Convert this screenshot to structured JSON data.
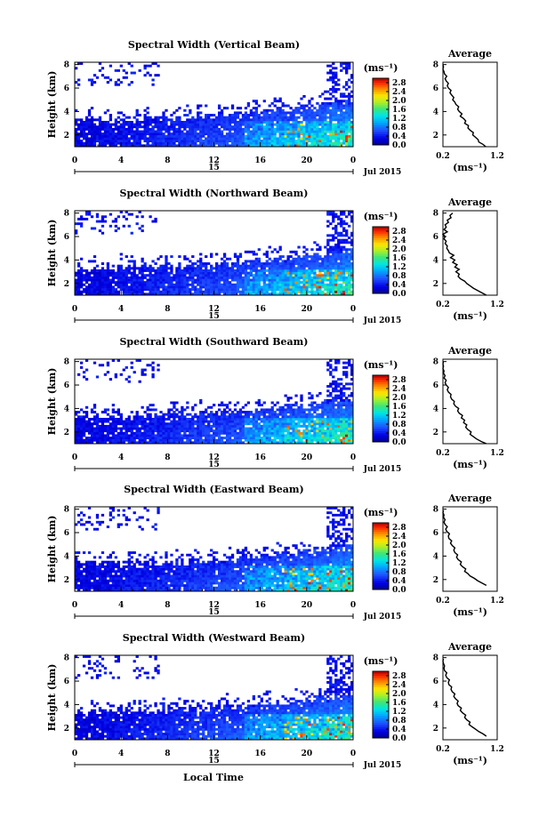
{
  "chart_data": [
    {
      "type": "heatmap",
      "title": "Spectral Width (Vertical Beam)",
      "ylabel": "Height (km)",
      "x_ticks": [
        "0",
        "4",
        "8",
        "12",
        "16",
        "20",
        "0"
      ],
      "y_ticks": [
        "2",
        "4",
        "6",
        "8"
      ],
      "date_day": "15",
      "date_month": "Jul 2015",
      "colorbar": {
        "unit": "(ms⁻¹)",
        "ticks": [
          "0.0",
          "0.4",
          "0.8",
          "1.2",
          "1.6",
          "2.0",
          "2.4",
          "2.8"
        ],
        "range": [
          0,
          3.0
        ]
      },
      "average": {
        "title": "Average",
        "xlabel": "(ms⁻¹)",
        "x_ticks": [
          "0.2",
          "1.2"
        ],
        "y_ticks": [
          "2",
          "4",
          "6",
          "8"
        ],
        "profile": [
          [
            0.99,
            1.0
          ],
          [
            0.94,
            1.2
          ],
          [
            0.86,
            1.4
          ],
          [
            0.85,
            1.6
          ],
          [
            0.8,
            1.8
          ],
          [
            0.75,
            2.0
          ],
          [
            0.76,
            2.2
          ],
          [
            0.7,
            2.4
          ],
          [
            0.66,
            2.6
          ],
          [
            0.67,
            2.8
          ],
          [
            0.6,
            3.0
          ],
          [
            0.62,
            3.2
          ],
          [
            0.58,
            3.4
          ],
          [
            0.52,
            3.6
          ],
          [
            0.55,
            3.8
          ],
          [
            0.5,
            4.0
          ],
          [
            0.47,
            4.2
          ],
          [
            0.49,
            4.4
          ],
          [
            0.44,
            4.6
          ],
          [
            0.42,
            4.8
          ],
          [
            0.38,
            5.0
          ],
          [
            0.4,
            5.2
          ],
          [
            0.36,
            5.4
          ],
          [
            0.33,
            5.6
          ],
          [
            0.35,
            5.8
          ],
          [
            0.3,
            6.0
          ],
          [
            0.28,
            6.2
          ],
          [
            0.3,
            6.4
          ],
          [
            0.26,
            6.6
          ],
          [
            0.24,
            6.8
          ],
          [
            0.27,
            7.0
          ],
          [
            0.23,
            7.2
          ],
          [
            0.22,
            7.4
          ],
          [
            0.2,
            7.6
          ],
          [
            0.21,
            7.8
          ],
          [
            0.2,
            8.0
          ]
        ]
      }
    },
    {
      "type": "heatmap",
      "title": "Spectral Width (Northward Beam)",
      "ylabel": "Height (km)",
      "x_ticks": [
        "0",
        "4",
        "8",
        "12",
        "16",
        "20",
        "0"
      ],
      "y_ticks": [
        "2",
        "4",
        "6",
        "8"
      ],
      "date_day": "15",
      "date_month": "Jul 2015",
      "colorbar": {
        "unit": "(ms⁻¹)",
        "ticks": [
          "0.0",
          "0.4",
          "0.8",
          "1.2",
          "1.6",
          "2.0",
          "2.4",
          "2.8"
        ],
        "range": [
          0,
          3.0
        ]
      },
      "average": {
        "title": "Average",
        "xlabel": "(ms⁻¹)",
        "x_ticks": [
          "0.2",
          "1.2"
        ],
        "y_ticks": [
          "2",
          "4",
          "6",
          "8"
        ],
        "profile": [
          [
            1.0,
            1.0
          ],
          [
            0.92,
            1.2
          ],
          [
            0.84,
            1.4
          ],
          [
            0.76,
            1.6
          ],
          [
            0.7,
            1.8
          ],
          [
            0.64,
            2.0
          ],
          [
            0.6,
            2.2
          ],
          [
            0.52,
            2.4
          ],
          [
            0.48,
            2.6
          ],
          [
            0.5,
            2.8
          ],
          [
            0.44,
            3.0
          ],
          [
            0.5,
            3.2
          ],
          [
            0.42,
            3.4
          ],
          [
            0.46,
            3.6
          ],
          [
            0.38,
            3.8
          ],
          [
            0.42,
            4.0
          ],
          [
            0.34,
            4.2
          ],
          [
            0.4,
            4.4
          ],
          [
            0.32,
            4.6
          ],
          [
            0.3,
            4.8
          ],
          [
            0.27,
            5.0
          ],
          [
            0.28,
            5.2
          ],
          [
            0.24,
            5.4
          ],
          [
            0.26,
            5.6
          ],
          [
            0.22,
            5.8
          ],
          [
            0.24,
            6.0
          ],
          [
            0.2,
            6.2
          ],
          [
            0.28,
            6.4
          ],
          [
            0.22,
            6.6
          ],
          [
            0.26,
            6.8
          ],
          [
            0.24,
            7.0
          ],
          [
            0.3,
            7.2
          ],
          [
            0.28,
            7.4
          ],
          [
            0.35,
            7.6
          ],
          [
            0.33,
            7.8
          ],
          [
            0.38,
            8.0
          ]
        ]
      }
    },
    {
      "type": "heatmap",
      "title": "Spectral Width (Southward Beam)",
      "ylabel": "Height (km)",
      "x_ticks": [
        "0",
        "4",
        "8",
        "12",
        "16",
        "20",
        "0"
      ],
      "y_ticks": [
        "2",
        "4",
        "6",
        "8"
      ],
      "date_day": "15",
      "date_month": "Jul 2015",
      "colorbar": {
        "unit": "(ms⁻¹)",
        "ticks": [
          "0.0",
          "0.4",
          "0.8",
          "1.2",
          "1.6",
          "2.0",
          "2.4",
          "2.8"
        ],
        "range": [
          0,
          3.0
        ]
      },
      "average": {
        "title": "Average",
        "xlabel": "(ms⁻¹)",
        "x_ticks": [
          "0.2",
          "1.2"
        ],
        "y_ticks": [
          "2",
          "4",
          "6",
          "8"
        ],
        "profile": [
          [
            1.0,
            1.0
          ],
          [
            0.9,
            1.2
          ],
          [
            0.82,
            1.4
          ],
          [
            0.76,
            1.6
          ],
          [
            0.7,
            1.8
          ],
          [
            0.72,
            2.0
          ],
          [
            0.66,
            2.2
          ],
          [
            0.62,
            2.4
          ],
          [
            0.64,
            2.6
          ],
          [
            0.58,
            2.8
          ],
          [
            0.6,
            3.0
          ],
          [
            0.54,
            3.2
          ],
          [
            0.56,
            3.4
          ],
          [
            0.5,
            3.6
          ],
          [
            0.47,
            3.8
          ],
          [
            0.49,
            4.0
          ],
          [
            0.43,
            4.2
          ],
          [
            0.4,
            4.4
          ],
          [
            0.41,
            4.6
          ],
          [
            0.36,
            4.8
          ],
          [
            0.34,
            5.0
          ],
          [
            0.35,
            5.2
          ],
          [
            0.3,
            5.4
          ],
          [
            0.28,
            5.6
          ],
          [
            0.3,
            5.8
          ],
          [
            0.26,
            6.0
          ],
          [
            0.24,
            6.2
          ],
          [
            0.26,
            6.4
          ],
          [
            0.22,
            6.6
          ],
          [
            0.24,
            6.8
          ],
          [
            0.21,
            7.0
          ],
          [
            0.22,
            7.2
          ],
          [
            0.2,
            7.4
          ],
          [
            0.21,
            7.6
          ],
          [
            0.2,
            7.8
          ],
          [
            0.21,
            8.0
          ]
        ]
      }
    },
    {
      "type": "heatmap",
      "title": "Spectral Width (Eastward Beam)",
      "ylabel": "Height (km)",
      "x_ticks": [
        "0",
        "4",
        "8",
        "12",
        "16",
        "20",
        "0"
      ],
      "y_ticks": [
        "2",
        "4",
        "6",
        "8"
      ],
      "date_day": "15",
      "date_month": "Jul 2015",
      "colorbar": {
        "unit": "(ms⁻¹)",
        "ticks": [
          "0.0",
          "0.4",
          "0.8",
          "1.2",
          "1.6",
          "2.0",
          "2.4",
          "2.8"
        ],
        "range": [
          0,
          3.0
        ]
      },
      "average": {
        "title": "Average",
        "xlabel": "(ms⁻¹)",
        "x_ticks": [
          "0.2",
          "1.2"
        ],
        "y_ticks": [
          "2",
          "4",
          "6",
          "8"
        ],
        "profile": [
          [
            1.0,
            1.5
          ],
          [
            0.92,
            1.7
          ],
          [
            0.84,
            1.9
          ],
          [
            0.78,
            2.1
          ],
          [
            0.7,
            2.3
          ],
          [
            0.66,
            2.5
          ],
          [
            0.6,
            2.7
          ],
          [
            0.62,
            2.9
          ],
          [
            0.56,
            3.1
          ],
          [
            0.52,
            3.3
          ],
          [
            0.54,
            3.5
          ],
          [
            0.48,
            3.7
          ],
          [
            0.45,
            3.9
          ],
          [
            0.47,
            4.1
          ],
          [
            0.42,
            4.3
          ],
          [
            0.4,
            4.5
          ],
          [
            0.42,
            4.7
          ],
          [
            0.37,
            4.9
          ],
          [
            0.34,
            5.1
          ],
          [
            0.36,
            5.3
          ],
          [
            0.31,
            5.5
          ],
          [
            0.3,
            5.7
          ],
          [
            0.32,
            5.9
          ],
          [
            0.27,
            6.1
          ],
          [
            0.25,
            6.3
          ],
          [
            0.28,
            6.5
          ],
          [
            0.24,
            6.7
          ],
          [
            0.22,
            6.9
          ],
          [
            0.24,
            7.1
          ],
          [
            0.21,
            7.3
          ],
          [
            0.22,
            7.5
          ],
          [
            0.2,
            7.7
          ],
          [
            0.21,
            7.9
          ]
        ]
      }
    },
    {
      "type": "heatmap",
      "title": "Spectral Width (Westward Beam)",
      "ylabel": "Height (km)",
      "x_ticks": [
        "0",
        "4",
        "8",
        "12",
        "16",
        "20",
        "0"
      ],
      "y_ticks": [
        "2",
        "4",
        "6",
        "8"
      ],
      "date_day": "15",
      "date_month": "Jul 2015",
      "colorbar": {
        "unit": "(ms⁻¹)",
        "ticks": [
          "0.0",
          "0.4",
          "0.8",
          "1.2",
          "1.6",
          "2.0",
          "2.4",
          "2.8"
        ],
        "range": [
          0,
          3.0
        ]
      },
      "average": {
        "title": "Average",
        "xlabel": "(ms⁻¹)",
        "x_ticks": [
          "0.2",
          "1.2"
        ],
        "y_ticks": [
          "2",
          "4",
          "6",
          "8"
        ],
        "profile": [
          [
            1.0,
            1.3
          ],
          [
            0.94,
            1.5
          ],
          [
            0.86,
            1.7
          ],
          [
            0.8,
            1.9
          ],
          [
            0.74,
            2.1
          ],
          [
            0.68,
            2.3
          ],
          [
            0.7,
            2.5
          ],
          [
            0.64,
            2.7
          ],
          [
            0.6,
            2.9
          ],
          [
            0.62,
            3.1
          ],
          [
            0.56,
            3.3
          ],
          [
            0.52,
            3.5
          ],
          [
            0.54,
            3.7
          ],
          [
            0.48,
            3.9
          ],
          [
            0.46,
            4.1
          ],
          [
            0.48,
            4.3
          ],
          [
            0.43,
            4.5
          ],
          [
            0.4,
            4.7
          ],
          [
            0.42,
            4.9
          ],
          [
            0.37,
            5.1
          ],
          [
            0.35,
            5.3
          ],
          [
            0.36,
            5.5
          ],
          [
            0.31,
            5.7
          ],
          [
            0.3,
            5.9
          ],
          [
            0.32,
            6.1
          ],
          [
            0.27,
            6.3
          ],
          [
            0.25,
            6.5
          ],
          [
            0.27,
            6.7
          ],
          [
            0.23,
            6.9
          ],
          [
            0.22,
            7.1
          ],
          [
            0.23,
            7.3
          ],
          [
            0.21,
            7.5
          ],
          [
            0.2,
            7.7
          ],
          [
            0.21,
            7.9
          ]
        ]
      }
    }
  ],
  "x_axis_title": "Local Time"
}
